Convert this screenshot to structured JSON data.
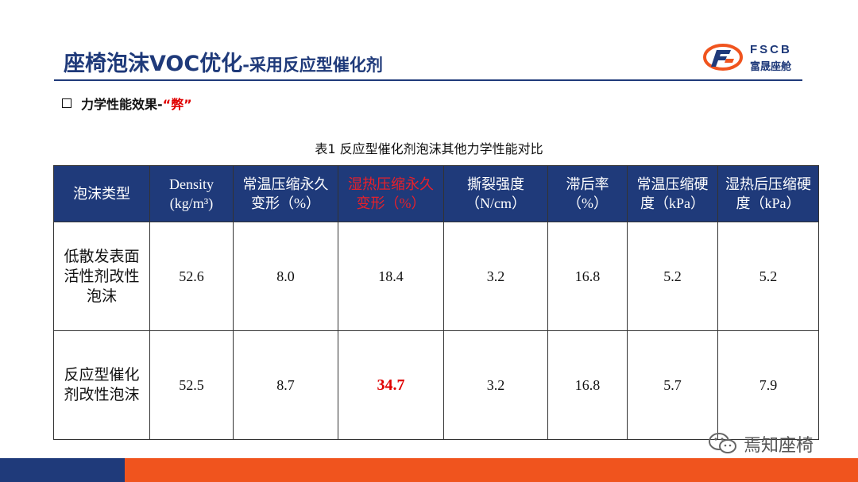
{
  "header": {
    "title_main": "座椅泡沫VOC优化",
    "title_suffix": "-采用反应型催化剂"
  },
  "logo": {
    "en": "FSCB",
    "cn": "富晟座舱"
  },
  "section": {
    "label": "力学性能效果-",
    "emphasis": "“弊”"
  },
  "table": {
    "caption": "表1 反应型催化剂泡沫其他力学性能对比",
    "headers": [
      "泡沫类型",
      "Density (kg/m³)",
      "常温压缩永久变形（%）",
      "湿热压缩永久变形（%）",
      "撕裂强度（N/cm）",
      "滞后率（%）",
      "常温压缩硬度（kPa）",
      "湿热后压缩硬度（kPa）"
    ],
    "rows": [
      [
        "低散发表面活性剂改性泡沫",
        "52.6",
        "8.0",
        "18.4",
        "3.2",
        "16.8",
        "5.2",
        "5.2"
      ],
      [
        "反应型催化剂改性泡沫",
        "52.5",
        "8.7",
        "34.7",
        "3.2",
        "16.8",
        "5.7",
        "7.9"
      ]
    ]
  },
  "watermark": {
    "text": "焉知座椅",
    "icon": "wechat-icon"
  },
  "colors": {
    "navy": "#1f3a7a",
    "orange": "#f0541e",
    "red": "#e00000"
  }
}
